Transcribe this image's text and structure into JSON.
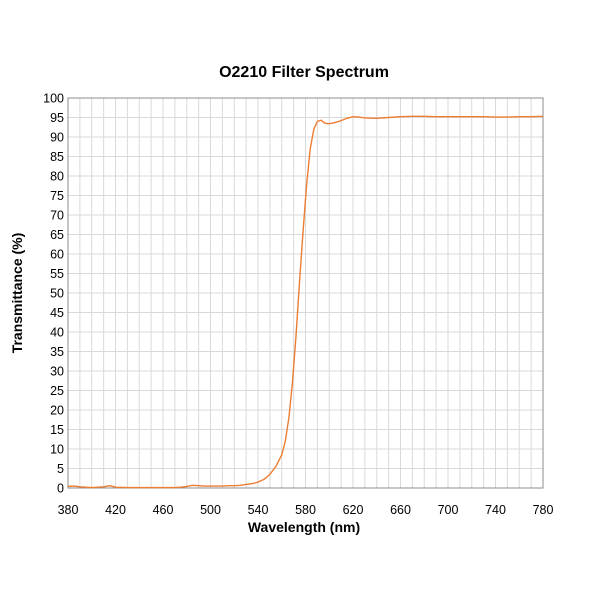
{
  "chart_data": {
    "type": "line",
    "title": "O2210 Filter Spectrum",
    "xlabel": "Wavelength (nm)",
    "ylabel": "Transmittance (%)",
    "xlim": [
      380,
      780
    ],
    "ylim": [
      0,
      100
    ],
    "x_ticks": [
      "380",
      "420",
      "460",
      "500",
      "540",
      "580",
      "620",
      "660",
      "700",
      "740",
      "780"
    ],
    "y_ticks": [
      "0",
      "5",
      "10",
      "15",
      "20",
      "25",
      "30",
      "35",
      "40",
      "45",
      "50",
      "55",
      "60",
      "65",
      "70",
      "75",
      "80",
      "85",
      "90",
      "95",
      "100"
    ],
    "grid": true,
    "legend": "none",
    "series": [
      {
        "color": "#ED7D31",
        "x": [
          380,
          385,
          390,
          395,
          400,
          405,
          410,
          415,
          420,
          430,
          440,
          450,
          460,
          470,
          475,
          480,
          485,
          490,
          495,
          500,
          505,
          510,
          515,
          520,
          525,
          530,
          535,
          540,
          545,
          550,
          555,
          560,
          563,
          566,
          569,
          572,
          575,
          578,
          581,
          584,
          587,
          590,
          593,
          596,
          599,
          602,
          606,
          610,
          615,
          620,
          625,
          630,
          640,
          650,
          660,
          670,
          680,
          690,
          700,
          710,
          720,
          730,
          740,
          750,
          760,
          770,
          780
        ],
        "y": [
          0.4,
          0.5,
          0.3,
          0.2,
          0.1,
          0.2,
          0.3,
          0.6,
          0.2,
          0.1,
          0.1,
          0.1,
          0.1,
          0.1,
          0.2,
          0.4,
          0.7,
          0.6,
          0.5,
          0.5,
          0.5,
          0.5,
          0.6,
          0.6,
          0.7,
          0.9,
          1.1,
          1.5,
          2.2,
          3.5,
          5.5,
          8.5,
          12,
          18,
          27,
          39,
          53,
          66,
          78,
          87,
          92,
          94,
          94.3,
          93.6,
          93.4,
          93.5,
          93.8,
          94.2,
          94.8,
          95.2,
          95.1,
          94.9,
          94.8,
          95,
          95.2,
          95.3,
          95.3,
          95.2,
          95.2,
          95.2,
          95.2,
          95.2,
          95.1,
          95.1,
          95.2,
          95.2,
          95.3
        ]
      }
    ]
  }
}
